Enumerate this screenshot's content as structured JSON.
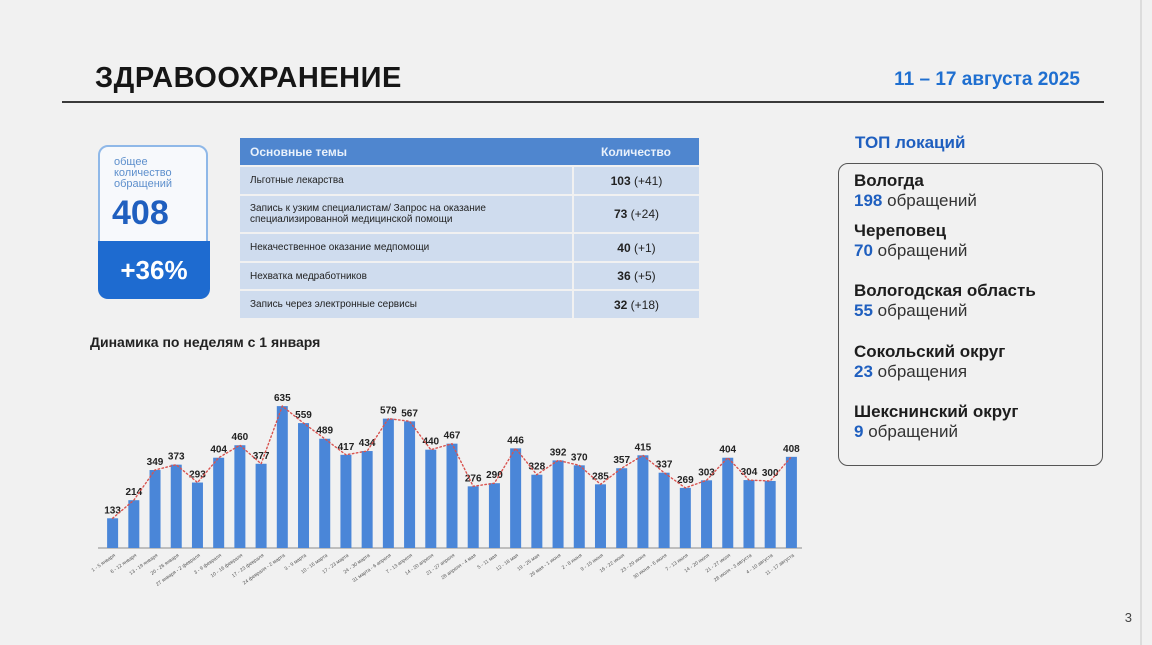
{
  "header": {
    "title": "ЗДРАВООХРАНЕНИЕ",
    "date_range": "11 – 17 августа 2025"
  },
  "total": {
    "label": "общее количество обращений",
    "value": "408",
    "change": "+36%"
  },
  "topics_table": {
    "headers": [
      "Основные темы",
      "Количество"
    ],
    "rows": [
      {
        "topic": "Льготные лекарства",
        "count": "103",
        "delta": "(+41)"
      },
      {
        "topic": "Запись к узким специалистам/ Запрос на оказание специализированной медицинской помощи",
        "count": "73",
        "delta": "(+24)"
      },
      {
        "topic": "Некачественное оказание медпомощи",
        "count": "40",
        "delta": "(+1)"
      },
      {
        "topic": "Нехватка медработников",
        "count": "36",
        "delta": "(+5)"
      },
      {
        "topic": "Запись через электронные сервисы",
        "count": "32",
        "delta": "(+18)"
      }
    ]
  },
  "dynamics_title": "Динамика по неделям с 1 января",
  "chart_data": {
    "type": "bar",
    "categories": [
      "1 - 5 января",
      "6 - 12 января",
      "13 - 19 января",
      "20 - 26 января",
      "27 января - 2 февраля",
      "3 - 9 февраля",
      "10 - 16 февраля",
      "17 - 23 февраля",
      "24 февраля - 2 марта",
      "3 - 9 марта",
      "10 - 16 марта",
      "17 - 23 марта",
      "24 - 30 марта",
      "31 марта - 6 апреля",
      "7 - 13 апреля",
      "14 - 20 апреля",
      "21 - 27 апреля",
      "28 апреля - 4 мая",
      "5 - 11 мая",
      "12 - 18 мая",
      "19 - 25 мая",
      "26 мая - 1 июня",
      "2 - 8 июня",
      "9 - 15 июня",
      "16 - 22 июня",
      "23 - 29 июня",
      "30 июня - 6 июля",
      "7 - 13 июля",
      "14 - 20 июля",
      "21 - 27 июля",
      "28 июля - 3 августа",
      "4 - 10 августа",
      "11 - 17 августа"
    ],
    "values": [
      133,
      214,
      349,
      373,
      293,
      404,
      460,
      377,
      635,
      559,
      489,
      417,
      434,
      579,
      567,
      440,
      467,
      276,
      290,
      446,
      328,
      392,
      370,
      285,
      357,
      415,
      337,
      269,
      303,
      404,
      304,
      300,
      408
    ],
    "bar_color": "#4a86d8",
    "trend_line_color": "#d9534f",
    "trend_line_style": "dotted"
  },
  "top_locations": {
    "title": "ТОП локаций",
    "items": [
      {
        "name": "Вологда",
        "count": "198",
        "suffix": "обращений"
      },
      {
        "name": "Череповец",
        "count": "70",
        "suffix": "обращений"
      },
      {
        "name": "Вологодская область",
        "count": "55",
        "suffix": "обращений"
      },
      {
        "name": "Сокольский округ",
        "count": "23",
        "suffix": "обращения"
      },
      {
        "name": "Шекснинский округ",
        "count": "9",
        "suffix": "обращений"
      }
    ]
  },
  "page_number": "3"
}
